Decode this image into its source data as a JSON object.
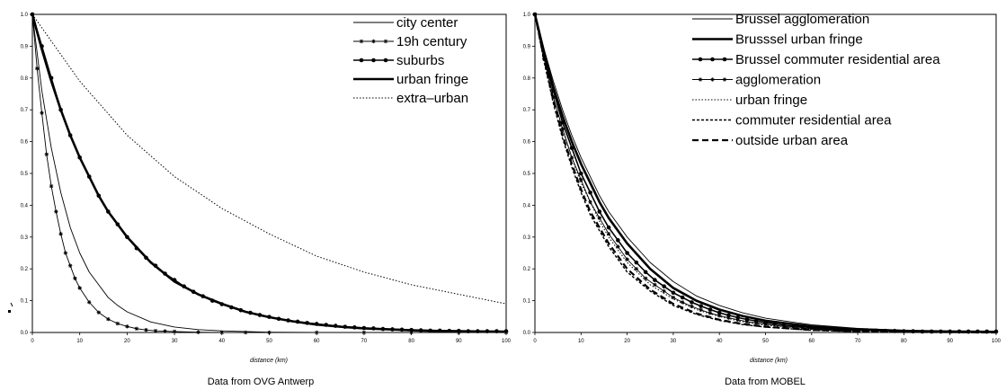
{
  "chart_data": [
    {
      "type": "line",
      "caption": "Data from OVG Antwerp",
      "xlabel": "distance (km)",
      "ylabel": "",
      "xlim": [
        0,
        100
      ],
      "ylim": [
        0,
        1.0
      ],
      "xticks": [
        "0",
        "10",
        "20",
        "30",
        "40",
        "50",
        "60",
        "70",
        "80",
        "90",
        "100"
      ],
      "yticks": [
        "0.0",
        "0.1",
        "0.2",
        "0.3",
        "0.4",
        "0.5",
        "0.6",
        "0.7",
        "0.8",
        "0.9",
        "1.0"
      ],
      "grid": false,
      "legend_position": "top-right",
      "series": [
        {
          "name": "city center",
          "style": "thin",
          "x": [
            0,
            2,
            4,
            6,
            8,
            10,
            12,
            14,
            16,
            18,
            20,
            25,
            30,
            35,
            40,
            45,
            50,
            60,
            70,
            80,
            90,
            100
          ],
          "y": [
            1.0,
            0.76,
            0.58,
            0.44,
            0.33,
            0.25,
            0.19,
            0.15,
            0.11,
            0.085,
            0.065,
            0.033,
            0.017,
            0.009,
            0.005,
            0.003,
            0.001,
            0,
            0,
            0,
            0,
            0
          ]
        },
        {
          "name": "19h century",
          "style": "star",
          "x": [
            0,
            1,
            2,
            3,
            4,
            5,
            6,
            7,
            8,
            9,
            10,
            12,
            14,
            16,
            18,
            20,
            22,
            24,
            26,
            28,
            30,
            35,
            40,
            45,
            50,
            60,
            70,
            80,
            90,
            100
          ],
          "y": [
            1.0,
            0.83,
            0.69,
            0.56,
            0.46,
            0.38,
            0.31,
            0.25,
            0.21,
            0.17,
            0.14,
            0.095,
            0.063,
            0.042,
            0.028,
            0.019,
            0.012,
            0.008,
            0.005,
            0.004,
            0.003,
            0.001,
            0,
            0,
            0,
            0,
            0,
            0,
            0,
            0
          ]
        },
        {
          "name": "suburbs",
          "style": "dot",
          "x": [
            0,
            2,
            4,
            6,
            8,
            10,
            12,
            14,
            16,
            18,
            20,
            22,
            24,
            26,
            28,
            30,
            32,
            34,
            36,
            38,
            40,
            42,
            44,
            46,
            48,
            50,
            52,
            54,
            56,
            58,
            60,
            62,
            64,
            66,
            68,
            70,
            72,
            74,
            76,
            78,
            80,
            82,
            84,
            86,
            88,
            90,
            92,
            94,
            96,
            98,
            100
          ],
          "y": [
            1.0,
            0.9,
            0.8,
            0.7,
            0.62,
            0.55,
            0.49,
            0.43,
            0.38,
            0.34,
            0.3,
            0.265,
            0.235,
            0.21,
            0.185,
            0.165,
            0.145,
            0.128,
            0.114,
            0.1,
            0.089,
            0.079,
            0.07,
            0.062,
            0.055,
            0.049,
            0.043,
            0.038,
            0.034,
            0.03,
            0.027,
            0.024,
            0.021,
            0.018,
            0.016,
            0.014,
            0.013,
            0.011,
            0.01,
            0.009,
            0.008,
            0.007,
            0.006,
            0.006,
            0.005,
            0.005,
            0.004,
            0.004,
            0.004,
            0.004,
            0.004
          ]
        },
        {
          "name": "urban fringe",
          "style": "thick",
          "x": [
            0,
            2,
            4,
            6,
            8,
            10,
            12,
            14,
            16,
            18,
            20,
            25,
            30,
            35,
            40,
            45,
            50,
            55,
            60,
            65,
            70,
            75,
            80,
            85,
            90,
            95,
            100
          ],
          "y": [
            1.0,
            0.89,
            0.79,
            0.7,
            0.62,
            0.55,
            0.49,
            0.43,
            0.38,
            0.34,
            0.3,
            0.22,
            0.16,
            0.12,
            0.09,
            0.065,
            0.048,
            0.035,
            0.025,
            0.018,
            0.013,
            0.01,
            0.007,
            0.005,
            0.004,
            0.003,
            0.002
          ]
        },
        {
          "name": "extra–urban",
          "style": "dotted",
          "x": [
            0,
            10,
            20,
            30,
            40,
            50,
            60,
            70,
            80,
            90,
            100
          ],
          "y": [
            1.0,
            0.79,
            0.62,
            0.49,
            0.39,
            0.31,
            0.24,
            0.19,
            0.15,
            0.12,
            0.09
          ]
        }
      ]
    },
    {
      "type": "line",
      "caption": "Data from MOBEL",
      "xlabel": "distance (km)",
      "ylabel": "",
      "xlim": [
        0,
        100
      ],
      "ylim": [
        0,
        1.0
      ],
      "xticks": [
        "0",
        "10",
        "20",
        "30",
        "40",
        "50",
        "60",
        "70",
        "80",
        "90",
        "100"
      ],
      "yticks": [
        "0.0",
        "0.1",
        "0.2",
        "0.3",
        "0.4",
        "0.5",
        "0.6",
        "0.7",
        "0.8",
        "0.9",
        "1.0"
      ],
      "grid": false,
      "legend_position": "top-right",
      "series": [
        {
          "name": "Brussel agglomeration",
          "style": "thin",
          "x": [
            0,
            2,
            4,
            6,
            8,
            10,
            12,
            14,
            16,
            18,
            20,
            25,
            30,
            35,
            40,
            45,
            50,
            60,
            70,
            80,
            90,
            100
          ],
          "y": [
            1.0,
            0.89,
            0.79,
            0.7,
            0.62,
            0.55,
            0.49,
            0.43,
            0.38,
            0.34,
            0.3,
            0.22,
            0.16,
            0.115,
            0.085,
            0.062,
            0.045,
            0.024,
            0.013,
            0.007,
            0.004,
            0.002
          ]
        },
        {
          "name": "Brusssel urban fringe",
          "style": "thick",
          "x": [
            0,
            2,
            4,
            6,
            8,
            10,
            12,
            14,
            16,
            18,
            20,
            25,
            30,
            35,
            40,
            45,
            50,
            60,
            70,
            80,
            90,
            100
          ],
          "y": [
            1.0,
            0.88,
            0.77,
            0.68,
            0.6,
            0.53,
            0.47,
            0.41,
            0.36,
            0.32,
            0.28,
            0.2,
            0.14,
            0.1,
            0.072,
            0.052,
            0.037,
            0.019,
            0.01,
            0.005,
            0.003,
            0.002
          ]
        },
        {
          "name": "Brussel commuter residential area",
          "style": "dot",
          "x": [
            0,
            2,
            4,
            6,
            8,
            10,
            12,
            14,
            16,
            18,
            20,
            22,
            24,
            26,
            28,
            30,
            32,
            34,
            36,
            38,
            40,
            42,
            44,
            46,
            48,
            50,
            52,
            54,
            56,
            58,
            60,
            62,
            64,
            66,
            68,
            70,
            72,
            74,
            76,
            78,
            80,
            82,
            84,
            86,
            88,
            90,
            92,
            94,
            96,
            98,
            100
          ],
          "y": [
            1.0,
            0.87,
            0.76,
            0.66,
            0.58,
            0.5,
            0.44,
            0.38,
            0.33,
            0.29,
            0.25,
            0.22,
            0.19,
            0.165,
            0.145,
            0.125,
            0.11,
            0.095,
            0.083,
            0.072,
            0.062,
            0.054,
            0.047,
            0.041,
            0.036,
            0.031,
            0.027,
            0.023,
            0.02,
            0.018,
            0.015,
            0.013,
            0.012,
            0.01,
            0.009,
            0.008,
            0.007,
            0.006,
            0.005,
            0.005,
            0.004,
            0.004,
            0.003,
            0.003,
            0.003,
            0.003,
            0.003,
            0.003,
            0.003,
            0.003,
            0.003
          ]
        },
        {
          "name": "agglomeration",
          "style": "star",
          "x": [
            0,
            2,
            4,
            6,
            8,
            10,
            12,
            14,
            16,
            18,
            20,
            22,
            24,
            26,
            28,
            30,
            32,
            34,
            36,
            38,
            40,
            42,
            44,
            46,
            48,
            50,
            54,
            58,
            62,
            66,
            70,
            74,
            78,
            82,
            86,
            90,
            94,
            98
          ],
          "y": [
            1.0,
            0.86,
            0.74,
            0.64,
            0.55,
            0.48,
            0.41,
            0.36,
            0.31,
            0.27,
            0.23,
            0.2,
            0.17,
            0.15,
            0.13,
            0.11,
            0.095,
            0.082,
            0.071,
            0.061,
            0.053,
            0.046,
            0.04,
            0.034,
            0.03,
            0.026,
            0.019,
            0.014,
            0.011,
            0.008,
            0.006,
            0.005,
            0.004,
            0.003,
            0.003,
            0.002,
            0.002,
            0.002
          ]
        },
        {
          "name": "urban fringe",
          "style": "dotted",
          "x": [
            0,
            2,
            4,
            6,
            8,
            10,
            12,
            14,
            16,
            18,
            20,
            25,
            30,
            35,
            40,
            45,
            50,
            60,
            70,
            80,
            90,
            100
          ],
          "y": [
            1.0,
            0.86,
            0.74,
            0.64,
            0.55,
            0.47,
            0.41,
            0.35,
            0.3,
            0.26,
            0.22,
            0.15,
            0.105,
            0.072,
            0.05,
            0.034,
            0.023,
            0.011,
            0.005,
            0.003,
            0.001,
            0.001
          ]
        },
        {
          "name": "commuter residential area",
          "style": "shortdash",
          "x": [
            0,
            2,
            4,
            6,
            8,
            10,
            12,
            14,
            16,
            18,
            20,
            25,
            30,
            35,
            40,
            45,
            50,
            60,
            70,
            80,
            90,
            100
          ],
          "y": [
            1.0,
            0.85,
            0.72,
            0.61,
            0.52,
            0.44,
            0.37,
            0.32,
            0.27,
            0.23,
            0.19,
            0.13,
            0.085,
            0.057,
            0.038,
            0.025,
            0.017,
            0.007,
            0.003,
            0.001,
            0.001,
            0
          ]
        },
        {
          "name": "outside urban area",
          "style": "longdash",
          "x": [
            0,
            2,
            4,
            6,
            8,
            10,
            12,
            14,
            16,
            18,
            20,
            25,
            30,
            35,
            40,
            45,
            50,
            60,
            70,
            80,
            90,
            100
          ],
          "y": [
            1.0,
            0.86,
            0.73,
            0.62,
            0.53,
            0.45,
            0.38,
            0.33,
            0.28,
            0.24,
            0.2,
            0.135,
            0.09,
            0.06,
            0.04,
            0.027,
            0.018,
            0.008,
            0.004,
            0.002,
            0.001,
            0
          ]
        }
      ]
    }
  ]
}
